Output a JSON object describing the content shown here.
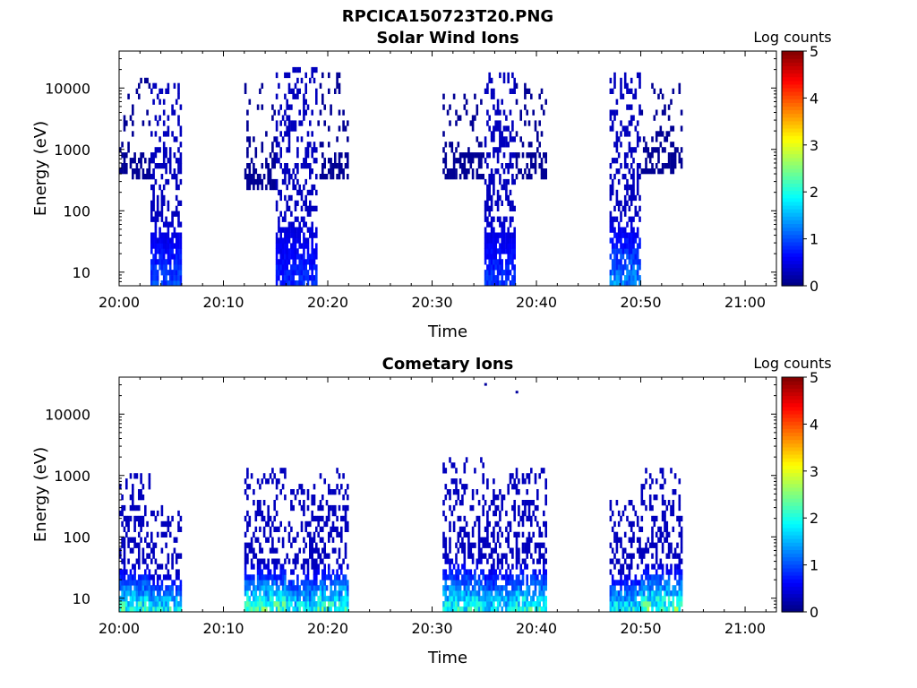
{
  "figure": {
    "title": "RPCICA150723T20.PNG"
  },
  "chart_data": [
    {
      "type": "heatmap",
      "title": "Solar Wind Ions",
      "xlabel": "Time",
      "ylabel": "Energy (eV)",
      "y_scale": "log",
      "ylim": [
        6,
        40000
      ],
      "x_range": [
        "20:00",
        "21:03"
      ],
      "x_ticks": [
        "20:00",
        "20:10",
        "20:20",
        "20:30",
        "20:40",
        "20:50",
        "21:00"
      ],
      "y_ticks": [
        "10",
        "100",
        "1000",
        "10000"
      ],
      "y_tick_values": [
        10,
        100,
        1000,
        10000
      ],
      "colorbar": {
        "label": "Log counts",
        "min": 0,
        "max": 5,
        "ticks": [
          "0",
          "1",
          "2",
          "3",
          "4",
          "5"
        ],
        "colormap": "jet"
      },
      "bursts": [
        {
          "t_start": "20:00",
          "t_end": "20:03",
          "e_min": 300,
          "e_max": 15000,
          "log_counts": 0.1,
          "sparse": true
        },
        {
          "t_start": "20:03",
          "t_end": "20:06",
          "e_min": 6,
          "e_max": 12000,
          "log_counts": 0.3,
          "peak_log_counts": 1.2
        },
        {
          "t_start": "20:12",
          "t_end": "20:15",
          "e_min": 200,
          "e_max": 12000,
          "log_counts": 0.1,
          "sparse": true
        },
        {
          "t_start": "20:15",
          "t_end": "20:19",
          "e_min": 6,
          "e_max": 20000,
          "log_counts": 0.3,
          "peak_log_counts": 1.0
        },
        {
          "t_start": "20:19",
          "t_end": "20:22",
          "e_min": 300,
          "e_max": 15000,
          "log_counts": 0.1,
          "sparse": true
        },
        {
          "t_start": "20:31",
          "t_end": "20:35",
          "e_min": 300,
          "e_max": 12000,
          "log_counts": 0.1,
          "sparse": true
        },
        {
          "t_start": "20:35",
          "t_end": "20:38",
          "e_min": 6,
          "e_max": 15000,
          "log_counts": 0.3,
          "peak_log_counts": 1.1
        },
        {
          "t_start": "20:38",
          "t_end": "20:41",
          "e_min": 300,
          "e_max": 12000,
          "log_counts": 0.1,
          "sparse": true
        },
        {
          "t_start": "20:47",
          "t_end": "20:50",
          "e_min": 6,
          "e_max": 15000,
          "log_counts": 0.3,
          "peak_log_counts": 1.6
        },
        {
          "t_start": "20:50",
          "t_end": "20:54",
          "e_min": 400,
          "e_max": 12000,
          "log_counts": 0.1,
          "sparse": true
        }
      ]
    },
    {
      "type": "heatmap",
      "title": "Cometary Ions",
      "xlabel": "Time",
      "ylabel": "Energy (eV)",
      "y_scale": "log",
      "ylim": [
        6,
        40000
      ],
      "x_range": [
        "20:00",
        "21:03"
      ],
      "x_ticks": [
        "20:00",
        "20:10",
        "20:20",
        "20:30",
        "20:40",
        "20:50",
        "21:00"
      ],
      "y_ticks": [
        "10",
        "100",
        "1000",
        "10000"
      ],
      "y_tick_values": [
        10,
        100,
        1000,
        10000
      ],
      "colorbar": {
        "label": "Log counts",
        "min": 0,
        "max": 5,
        "ticks": [
          "0",
          "1",
          "2",
          "3",
          "4",
          "5"
        ],
        "colormap": "jet"
      },
      "bursts": [
        {
          "t_start": "20:00",
          "t_end": "20:03",
          "e_min": 6,
          "e_max": 900,
          "log_counts": 0.3,
          "peak_log_counts": 2.6
        },
        {
          "t_start": "20:03",
          "t_end": "20:06",
          "e_min": 6,
          "e_max": 300,
          "log_counts": 0.3,
          "peak_log_counts": 2.4
        },
        {
          "t_start": "20:12",
          "t_end": "20:16",
          "e_min": 6,
          "e_max": 1100,
          "log_counts": 0.3,
          "peak_log_counts": 2.8
        },
        {
          "t_start": "20:16",
          "t_end": "20:19",
          "e_min": 6,
          "e_max": 700,
          "log_counts": 0.3,
          "peak_log_counts": 2.3
        },
        {
          "t_start": "20:19",
          "t_end": "20:22",
          "e_min": 6,
          "e_max": 1100,
          "log_counts": 0.3,
          "peak_log_counts": 2.7
        },
        {
          "t_start": "20:31",
          "t_end": "20:35",
          "e_min": 6,
          "e_max": 1800,
          "log_counts": 0.3,
          "peak_log_counts": 2.5
        },
        {
          "t_start": "20:35",
          "t_end": "20:38",
          "e_min": 6,
          "e_max": 900,
          "log_counts": 0.3,
          "peak_log_counts": 2.2
        },
        {
          "t_start": "20:38",
          "t_end": "20:41",
          "e_min": 6,
          "e_max": 1200,
          "log_counts": 0.3,
          "peak_log_counts": 2.6
        },
        {
          "t_start": "20:47",
          "t_end": "20:50",
          "e_min": 6,
          "e_max": 400,
          "log_counts": 0.3,
          "peak_log_counts": 2.4
        },
        {
          "t_start": "20:50",
          "t_end": "20:54",
          "e_min": 6,
          "e_max": 1100,
          "log_counts": 0.3,
          "peak_log_counts": 2.8
        }
      ],
      "outliers": [
        {
          "t": "20:35",
          "e": 32000
        },
        {
          "t": "20:38",
          "e": 24000
        }
      ]
    }
  ]
}
